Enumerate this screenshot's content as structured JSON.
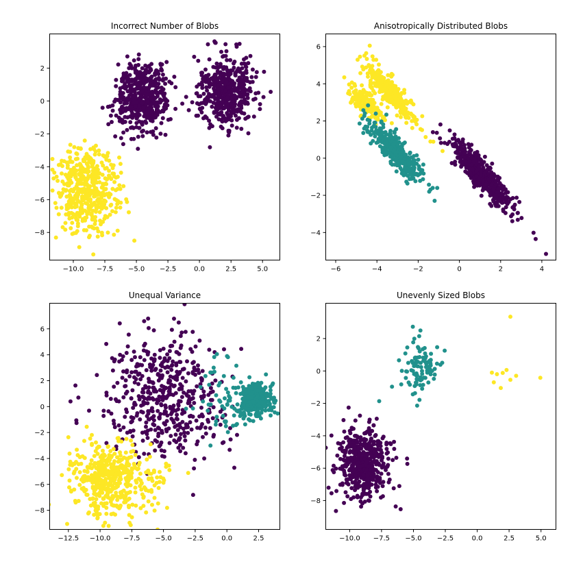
{
  "figure": {
    "background": "#ffffff",
    "frame_color": "#000000",
    "tick_label_color": "#000000",
    "title_color": "#000000",
    "marker_radius": 3
  },
  "palette": {
    "purple": "#440154",
    "teal": "#21918c",
    "yellow": "#fde725"
  },
  "chart_data": [
    {
      "type": "scatter",
      "title": "Incorrect Number of Blobs",
      "xlabel": "",
      "ylabel": "",
      "grid": false,
      "legend": "none",
      "xlim": [
        -11.9,
        6.4
      ],
      "ylim": [
        -9.7,
        4.1
      ],
      "xticks": [
        [
          -10,
          "−10.0"
        ],
        [
          -7.5,
          "−7.5"
        ],
        [
          -5,
          "−5.0"
        ],
        [
          -2.5,
          "−2.5"
        ],
        [
          0,
          "0.0"
        ],
        [
          2.5,
          "2.5"
        ],
        [
          5,
          "5.0"
        ]
      ],
      "yticks": [
        [
          -8,
          "−8"
        ],
        [
          -6,
          "−6"
        ],
        [
          -4,
          "−4"
        ],
        [
          -2,
          "−2"
        ],
        [
          0,
          "0"
        ],
        [
          2,
          "2"
        ]
      ],
      "clusters": [
        {
          "label": "cluster-purple-left-blob",
          "color": "purple",
          "n": 500,
          "center": [
            -4.45,
            0.3
          ],
          "std": [
            1.05,
            1.1
          ],
          "angle": 0,
          "seed": 101
        },
        {
          "label": "cluster-purple-right-blob",
          "color": "purple",
          "n": 500,
          "center": [
            2.15,
            0.5
          ],
          "std": [
            1.1,
            1.05
          ],
          "angle": 0,
          "seed": 102
        },
        {
          "label": "cluster-yellow-blob",
          "color": "yellow",
          "n": 500,
          "center": [
            -8.95,
            -5.5
          ],
          "std": [
            1.2,
            1.25
          ],
          "angle": 0,
          "seed": 103
        }
      ]
    },
    {
      "type": "scatter",
      "title": "Anisotropically Distributed Blobs",
      "xlabel": "",
      "ylabel": "",
      "grid": false,
      "legend": "none",
      "xlim": [
        -6.5,
        4.7
      ],
      "ylim": [
        -5.5,
        6.7
      ],
      "xticks": [
        [
          -6,
          "−6"
        ],
        [
          -4,
          "−4"
        ],
        [
          -2,
          "−2"
        ],
        [
          0,
          "0"
        ],
        [
          2,
          "2"
        ],
        [
          4,
          "4"
        ]
      ],
      "yticks": [
        [
          -4,
          "−4"
        ],
        [
          -2,
          "−2"
        ],
        [
          0,
          "0"
        ],
        [
          2,
          "2"
        ],
        [
          4,
          "4"
        ],
        [
          6,
          "6"
        ]
      ],
      "clusters": [
        {
          "label": "cluster-yellow-upper-streak",
          "color": "yellow",
          "n": 300,
          "center": [
            -3.3,
            3.5
          ],
          "std": [
            1.0,
            0.24
          ],
          "angle": -52,
          "seed": 201
        },
        {
          "label": "cluster-yellow-left-streak",
          "color": "yellow",
          "n": 170,
          "center": [
            -4.55,
            3.0
          ],
          "std": [
            0.62,
            0.22
          ],
          "angle": -50,
          "seed": 202
        },
        {
          "label": "cluster-yellow-outlier",
          "color": "yellow",
          "points": [
            [
              -4.35,
              6.05
            ]
          ]
        },
        {
          "label": "cluster-teal-streak",
          "color": "teal",
          "n": 350,
          "center": [
            -3.05,
            0.35
          ],
          "std": [
            1.0,
            0.27
          ],
          "angle": -52,
          "seed": 203
        },
        {
          "label": "cluster-purple-streak",
          "color": "purple",
          "n": 480,
          "center": [
            1.05,
            -0.9
          ],
          "std": [
            1.15,
            0.3
          ],
          "angle": -53,
          "seed": 204
        },
        {
          "label": "cluster-purple-outliers",
          "color": "purple",
          "points": [
            [
              4.2,
              -5.15
            ],
            [
              3.7,
              -4.35
            ]
          ]
        }
      ]
    },
    {
      "type": "scatter",
      "title": "Unequal Variance",
      "xlabel": "",
      "ylabel": "",
      "grid": false,
      "legend": "none",
      "xlim": [
        -14.0,
        4.2
      ],
      "ylim": [
        -9.5,
        8.0
      ],
      "xticks": [
        [
          -12.5,
          "−12.5"
        ],
        [
          -10,
          "−10.0"
        ],
        [
          -7.5,
          "−7.5"
        ],
        [
          -5,
          "−5.0"
        ],
        [
          -2.5,
          "−2.5"
        ],
        [
          0,
          "0.0"
        ],
        [
          2.5,
          "2.5"
        ]
      ],
      "yticks": [
        [
          -8,
          "−8"
        ],
        [
          -6,
          "−6"
        ],
        [
          -4,
          "−4"
        ],
        [
          -2,
          "−2"
        ],
        [
          0,
          "0"
        ],
        [
          2,
          "2"
        ],
        [
          4,
          "4"
        ],
        [
          6,
          "6"
        ]
      ],
      "clusters": [
        {
          "label": "cluster-purple-wide-variance",
          "color": "purple",
          "n": 500,
          "center": [
            -4.8,
            0.7
          ],
          "std": [
            2.4,
            2.4
          ],
          "angle": 0,
          "seed": 301
        },
        {
          "label": "cluster-teal-scattered",
          "color": "teal",
          "n": 60,
          "center": [
            -0.2,
            0.5
          ],
          "std": [
            1.2,
            1.7
          ],
          "angle": 0,
          "seed": 302
        },
        {
          "label": "cluster-teal-compact",
          "color": "teal",
          "n": 330,
          "center": [
            2.3,
            0.45
          ],
          "std": [
            0.62,
            0.6
          ],
          "angle": 0,
          "seed": 303
        },
        {
          "label": "cluster-yellow-blob",
          "color": "yellow",
          "n": 470,
          "center": [
            -9.3,
            -5.55
          ],
          "std": [
            1.45,
            1.3
          ],
          "angle": 0,
          "seed": 304
        },
        {
          "label": "cluster-yellow-right-strays",
          "color": "yellow",
          "n": 30,
          "center": [
            -5.6,
            -5.7
          ],
          "std": [
            1.0,
            0.8
          ],
          "angle": 0,
          "seed": 305
        }
      ]
    },
    {
      "type": "scatter",
      "title": "Unevenly Sized Blobs",
      "xlabel": "",
      "ylabel": "",
      "grid": false,
      "legend": "none",
      "xlim": [
        -11.9,
        6.2
      ],
      "ylim": [
        -9.8,
        4.2
      ],
      "xticks": [
        [
          -10,
          "−10.0"
        ],
        [
          -7.5,
          "−7.5"
        ],
        [
          -5,
          "−5.0"
        ],
        [
          -2.5,
          "−2.5"
        ],
        [
          0,
          "0.0"
        ],
        [
          2.5,
          "2.5"
        ],
        [
          5,
          "5.0"
        ]
      ],
      "yticks": [
        [
          -8,
          "−8"
        ],
        [
          -6,
          "−6"
        ],
        [
          -4,
          "−4"
        ],
        [
          -2,
          "−2"
        ],
        [
          0,
          "0"
        ],
        [
          2,
          "2"
        ]
      ],
      "clusters": [
        {
          "label": "cluster-purple-large",
          "color": "purple",
          "n": 500,
          "center": [
            -9.0,
            -5.65
          ],
          "std": [
            1.05,
            1.1
          ],
          "angle": 0,
          "seed": 401
        },
        {
          "label": "cluster-teal-medium",
          "color": "teal",
          "n": 100,
          "center": [
            -4.55,
            0.2
          ],
          "std": [
            0.9,
            0.85
          ],
          "angle": 0,
          "seed": 402
        },
        {
          "label": "cluster-yellow-small",
          "color": "yellow",
          "points": [
            [
              2.6,
              3.35
            ],
            [
              1.15,
              -0.1
            ],
            [
              1.55,
              -0.2
            ],
            [
              2.0,
              -0.12
            ],
            [
              2.3,
              0.06
            ],
            [
              1.3,
              -0.7
            ],
            [
              1.85,
              -1.05
            ],
            [
              2.6,
              -0.55
            ],
            [
              3.05,
              -0.3
            ],
            [
              4.95,
              -0.42
            ]
          ]
        }
      ]
    }
  ]
}
